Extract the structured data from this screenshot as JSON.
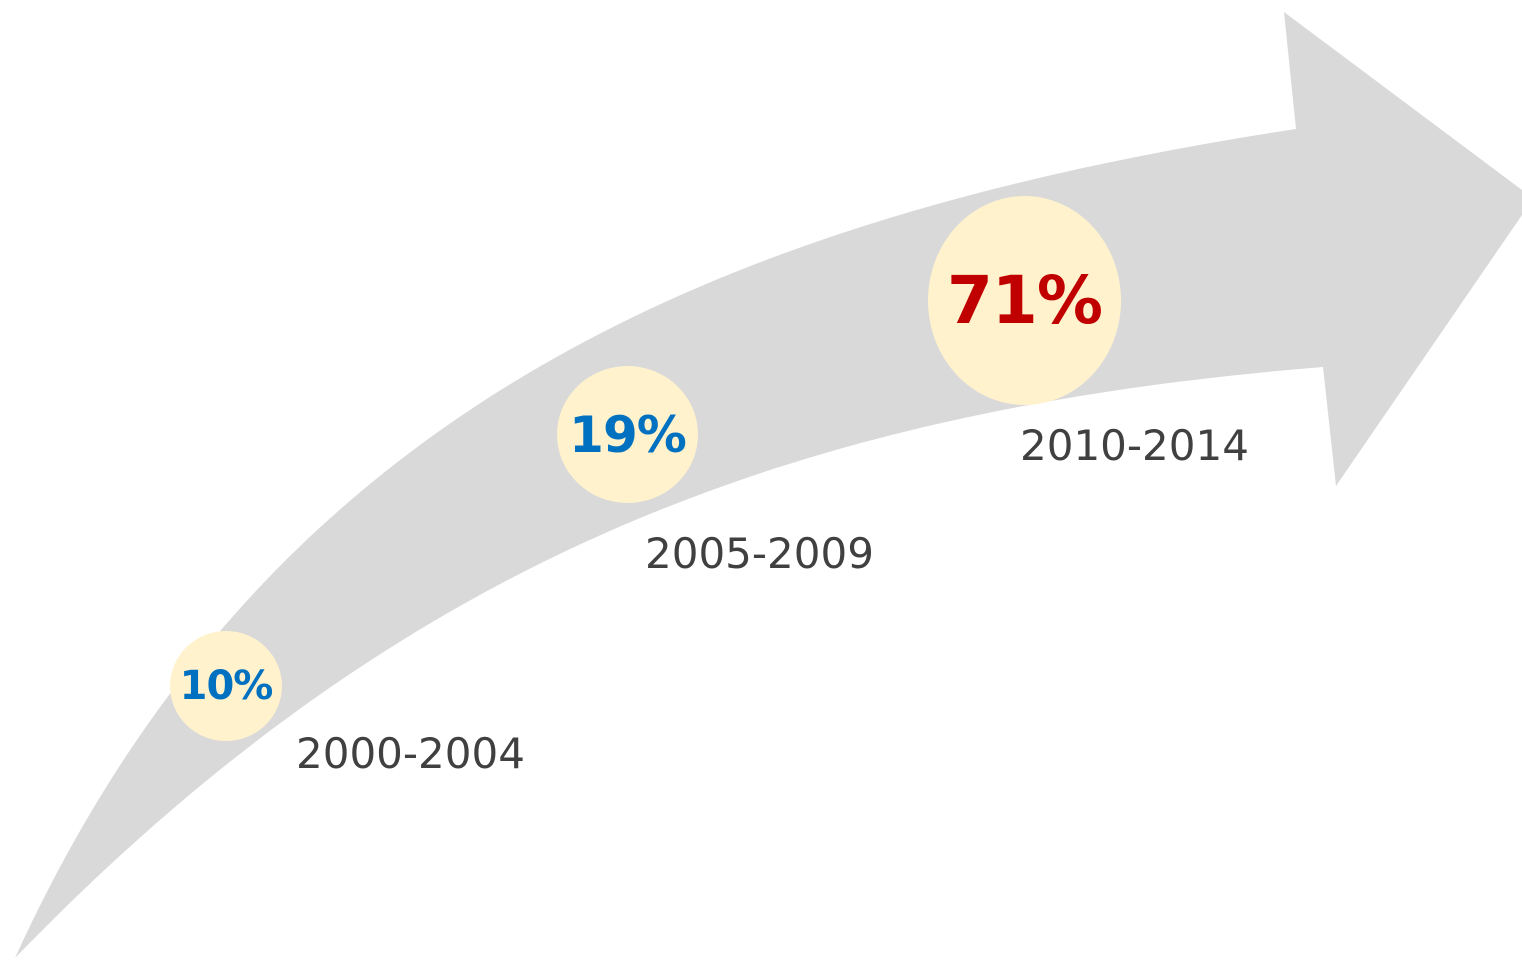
{
  "colors": {
    "arrow": "#d9d9d9",
    "bubble_fill": "#fff2cc",
    "period_text": "#404040"
  },
  "arrow_icon": "curved-up-arrow",
  "stages": [
    {
      "value": "10%",
      "period": "2000-2004",
      "color": "#0070c0"
    },
    {
      "value": "19%",
      "period": "2005-2009",
      "color": "#0070c0"
    },
    {
      "value": "71%",
      "period": "2010-2014",
      "color": "#c00000"
    }
  ]
}
